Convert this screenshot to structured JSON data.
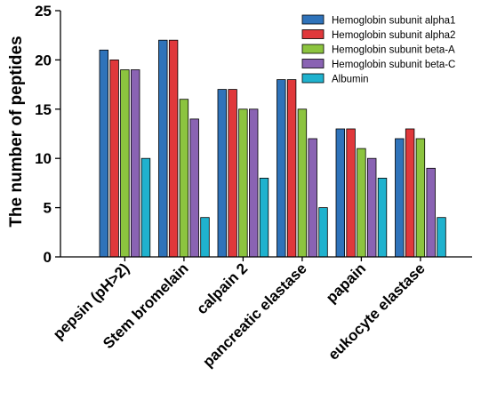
{
  "chart_data": {
    "type": "bar",
    "title": "",
    "xlabel": "",
    "ylabel": "The number of peptides",
    "ylim": [
      0,
      25
    ],
    "yticks": [
      0,
      5,
      10,
      15,
      20,
      25
    ],
    "grid": false,
    "legend_position": "top-right",
    "categories": [
      "pepsin (pH>2)",
      "Stem bromelain",
      "calpain 2",
      "pancreatic elastase",
      "papain",
      "eukocyte elastase"
    ],
    "series": [
      {
        "name": "Hemoglobin subunit alpha1",
        "color": "#2F73BA",
        "values": [
          21,
          22,
          17,
          18,
          13,
          12
        ]
      },
      {
        "name": "Hemoglobin subunit alpha2",
        "color": "#E0383B",
        "values": [
          20,
          22,
          17,
          18,
          13,
          13
        ]
      },
      {
        "name": "Hemoglobin subunit beta-A",
        "color": "#8CC43F",
        "values": [
          19,
          16,
          15,
          15,
          11,
          12
        ]
      },
      {
        "name": "Hemoglobin subunit beta-C",
        "color": "#8A63B3",
        "values": [
          19,
          14,
          15,
          12,
          10,
          9
        ]
      },
      {
        "name": "Albumin",
        "color": "#1FB2CE",
        "values": [
          10,
          4,
          8,
          5,
          8,
          4
        ]
      }
    ]
  }
}
